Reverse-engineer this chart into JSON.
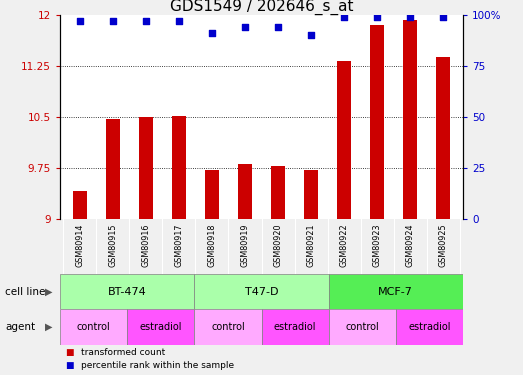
{
  "title": "GDS1549 / 202646_s_at",
  "samples": [
    "GSM80914",
    "GSM80915",
    "GSM80916",
    "GSM80917",
    "GSM80918",
    "GSM80919",
    "GSM80920",
    "GSM80921",
    "GSM80922",
    "GSM80923",
    "GSM80924",
    "GSM80925"
  ],
  "bar_values": [
    9.42,
    10.48,
    10.51,
    10.52,
    9.73,
    9.81,
    9.79,
    9.72,
    11.32,
    11.85,
    11.92,
    11.38
  ],
  "dot_values": [
    97,
    97,
    97,
    97,
    91,
    94,
    94,
    90,
    99,
    99,
    99,
    99
  ],
  "bar_color": "#CC0000",
  "dot_color": "#0000CC",
  "ylim_left": [
    9,
    12
  ],
  "ylim_right": [
    0,
    100
  ],
  "yticks_left": [
    9,
    9.75,
    10.5,
    11.25,
    12
  ],
  "yticks_right": [
    0,
    25,
    50,
    75,
    100
  ],
  "ytick_labels_left": [
    "9",
    "9.75",
    "10.5",
    "11.25",
    "12"
  ],
  "ytick_labels_right": [
    "0",
    "25",
    "50",
    "75",
    "100%"
  ],
  "hlines": [
    9.75,
    10.5,
    11.25
  ],
  "cell_line_groups": [
    {
      "label": "BT-474",
      "start": 0,
      "end": 3,
      "color": "#AAFFAA"
    },
    {
      "label": "T47-D",
      "start": 4,
      "end": 7,
      "color": "#AAFFAA"
    },
    {
      "label": "MCF-7",
      "start": 8,
      "end": 11,
      "color": "#66EE66"
    }
  ],
  "agent_groups": [
    {
      "label": "control",
      "start": 0,
      "end": 1,
      "color": "#FFAAFF"
    },
    {
      "label": "estradiol",
      "start": 2,
      "end": 3,
      "color": "#FF66FF"
    },
    {
      "label": "control",
      "start": 4,
      "end": 5,
      "color": "#FFAAFF"
    },
    {
      "label": "estradiol",
      "start": 6,
      "end": 7,
      "color": "#FF66FF"
    },
    {
      "label": "control",
      "start": 8,
      "end": 9,
      "color": "#FFAAFF"
    },
    {
      "label": "estradiol",
      "start": 10,
      "end": 11,
      "color": "#FF66FF"
    }
  ],
  "legend_bar_label": "transformed count",
  "legend_dot_label": "percentile rank within the sample",
  "cell_line_row_label": "cell line",
  "agent_row_label": "agent",
  "bg_color": "#F0F0F0",
  "plot_bg_color": "#FFFFFF",
  "sample_row_color": "#C8C8C8",
  "title_fontsize": 11,
  "tick_fontsize": 7.5,
  "bar_width": 0.45
}
